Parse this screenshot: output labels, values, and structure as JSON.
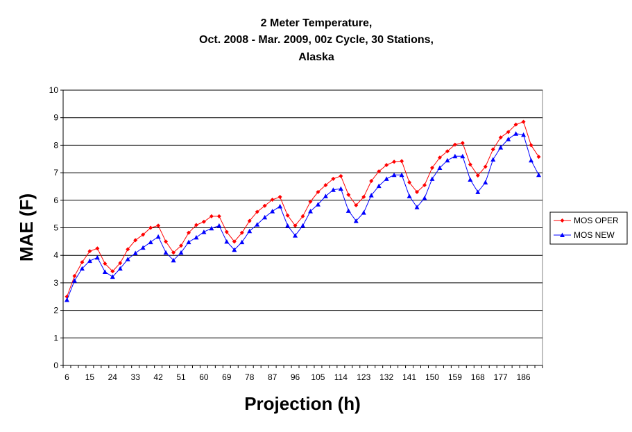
{
  "chart_data": {
    "type": "line",
    "title": [
      "2 Meter Temperature,",
      "Oct. 2008 - Mar. 2009, 00z Cycle, 30 Stations,",
      "Alaska"
    ],
    "xlabel": "Projection (h)",
    "ylabel": "MAE (F)",
    "ylim": [
      0,
      10
    ],
    "yticks": [
      0,
      1,
      2,
      3,
      4,
      5,
      6,
      7,
      8,
      9,
      10
    ],
    "xtick_labels": [
      "6",
      "15",
      "24",
      "33",
      "42",
      "51",
      "60",
      "69",
      "78",
      "87",
      "96",
      "105",
      "114",
      "123",
      "132",
      "141",
      "150",
      "159",
      "168",
      "177",
      "186"
    ],
    "x": [
      6,
      9,
      12,
      15,
      18,
      21,
      24,
      27,
      30,
      33,
      36,
      39,
      42,
      45,
      48,
      51,
      54,
      57,
      60,
      63,
      66,
      69,
      72,
      75,
      78,
      81,
      84,
      87,
      90,
      93,
      96,
      99,
      102,
      105,
      108,
      111,
      114,
      117,
      120,
      123,
      126,
      129,
      132,
      135,
      138,
      141,
      144,
      147,
      150,
      153,
      156,
      159,
      162,
      165,
      168,
      171,
      174,
      177,
      180,
      183,
      186,
      189,
      192
    ],
    "grid": "horizontal",
    "legend_position": "right",
    "series": [
      {
        "name": "MOS OPER",
        "color": "#ff0000",
        "marker": "diamond",
        "values": [
          2.5,
          3.25,
          3.75,
          4.15,
          4.25,
          3.7,
          3.42,
          3.72,
          4.22,
          4.55,
          4.75,
          5.0,
          5.08,
          4.5,
          4.1,
          4.35,
          4.82,
          5.1,
          5.22,
          5.42,
          5.42,
          4.85,
          4.5,
          4.82,
          5.25,
          5.58,
          5.8,
          6.02,
          6.12,
          5.45,
          5.08,
          5.42,
          5.95,
          6.3,
          6.55,
          6.78,
          6.88,
          6.2,
          5.82,
          6.12,
          6.7,
          7.05,
          7.28,
          7.4,
          7.42,
          6.65,
          6.3,
          6.55,
          7.18,
          7.55,
          7.78,
          8.02,
          8.08,
          7.3,
          6.9,
          7.22,
          7.85,
          8.28,
          8.48,
          8.75,
          8.85,
          8.0,
          7.58
        ]
      },
      {
        "name": "MOS NEW",
        "color": "#0000ff",
        "marker": "triangle",
        "values": [
          2.38,
          3.08,
          3.52,
          3.8,
          3.92,
          3.4,
          3.22,
          3.52,
          3.86,
          4.08,
          4.28,
          4.48,
          4.68,
          4.1,
          3.82,
          4.1,
          4.48,
          4.65,
          4.85,
          4.98,
          5.08,
          4.5,
          4.2,
          4.48,
          4.88,
          5.12,
          5.38,
          5.6,
          5.78,
          5.08,
          4.72,
          5.08,
          5.6,
          5.85,
          6.15,
          6.38,
          6.42,
          5.62,
          5.25,
          5.55,
          6.18,
          6.52,
          6.78,
          6.92,
          6.92,
          6.15,
          5.75,
          6.08,
          6.78,
          7.18,
          7.45,
          7.6,
          7.6,
          6.75,
          6.3,
          6.65,
          7.48,
          7.92,
          8.22,
          8.42,
          8.38,
          7.45,
          6.92
        ]
      }
    ]
  }
}
